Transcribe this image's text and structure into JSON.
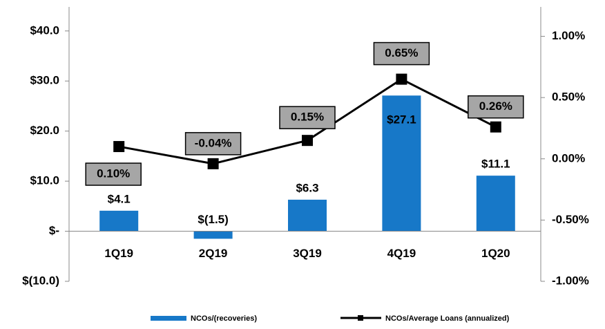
{
  "chart_data": {
    "type": "bar_line",
    "categories": [
      "1Q19",
      "2Q19",
      "3Q19",
      "4Q19",
      "1Q20"
    ],
    "series": [
      {
        "name": "NCOs/(recoveries)",
        "color": "#1778c8",
        "values": [
          4.1,
          -1.5,
          6.3,
          27.1,
          11.1
        ],
        "value_labels": [
          "$4.1",
          "$(1.5)",
          "$6.3",
          "$27.1",
          "$11.1"
        ]
      },
      {
        "name": "NCOs/Average Loans (annualized)",
        "color": "#000000",
        "axis": "y2",
        "values": [
          0.1,
          -0.04,
          0.15,
          0.65,
          0.26
        ],
        "value_labels": [
          "0.10%",
          "-0.04%",
          "0.15%",
          "0.65%",
          "0.26%"
        ]
      }
    ],
    "ylim": [
      -10,
      44.8
    ],
    "yticks": [
      {
        "value": -10,
        "label": "$(10.0)"
      },
      {
        "value": 0,
        "label": "$-"
      },
      {
        "value": 10,
        "label": "$10.0"
      },
      {
        "value": 20,
        "label": "$20.0"
      },
      {
        "value": 30,
        "label": "$30.0"
      },
      {
        "value": 40,
        "label": "$40.0"
      }
    ],
    "y2lim": [
      -1,
      1.24
    ],
    "y2ticks": [
      {
        "value": -1,
        "label": "-1.00%"
      },
      {
        "value": -0.5,
        "label": "-0.50%"
      },
      {
        "value": 0,
        "label": "0.00%"
      },
      {
        "value": 0.5,
        "label": "0.50%"
      },
      {
        "value": 1,
        "label": "1.00%"
      }
    ],
    "legend": "bottom"
  }
}
